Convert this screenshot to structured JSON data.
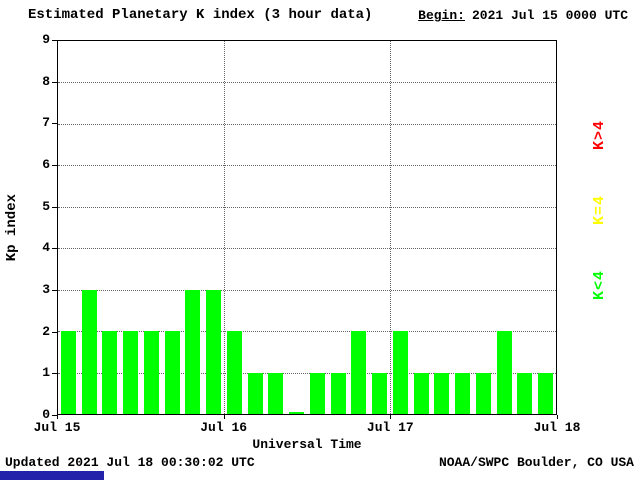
{
  "header": {
    "title": "Estimated Planetary K index (3 hour data)",
    "begin_label": "Begin:",
    "begin_value": "2021 Jul 15 0000 UTC"
  },
  "legend": [
    {
      "label": "K>4",
      "color": "#ff0000"
    },
    {
      "label": "K=4",
      "color": "#ffff00"
    },
    {
      "label": "K<4",
      "color": "#00ff00"
    }
  ],
  "footer": {
    "updated": "Updated 2021 Jul 18 00:30:02 UTC",
    "source": "NOAA/SWPC Boulder, CO USA",
    "accent_bar_color": "#2222aa"
  },
  "chart_data": {
    "type": "bar",
    "title": "Estimated Planetary K index (3 hour data)",
    "xlabel": "Universal Time",
    "ylabel": "Kp index",
    "ylim": [
      0,
      9
    ],
    "y_ticks": [
      0,
      1,
      2,
      3,
      4,
      5,
      6,
      7,
      8,
      9
    ],
    "x_ticks": [
      "Jul 15",
      "Jul 16",
      "Jul 17",
      "Jul 18"
    ],
    "grid": "dotted",
    "legend_position": "right",
    "bar_color": "#00ff00",
    "bars_per_day": 8,
    "interval_hours": 3,
    "days": [
      {
        "label": "Jul 15",
        "kp": [
          2,
          3,
          2,
          2,
          2,
          2,
          3,
          3
        ]
      },
      {
        "label": "Jul 16",
        "kp": [
          2,
          1,
          1,
          0,
          1,
          1,
          2,
          1
        ]
      },
      {
        "label": "Jul 17",
        "kp": [
          2,
          1,
          1,
          1,
          1,
          2,
          1,
          1
        ]
      }
    ],
    "values": [
      2,
      3,
      2,
      2,
      2,
      2,
      3,
      3,
      2,
      1,
      1,
      0,
      1,
      1,
      2,
      1,
      2,
      1,
      1,
      1,
      1,
      2,
      1,
      1
    ]
  }
}
